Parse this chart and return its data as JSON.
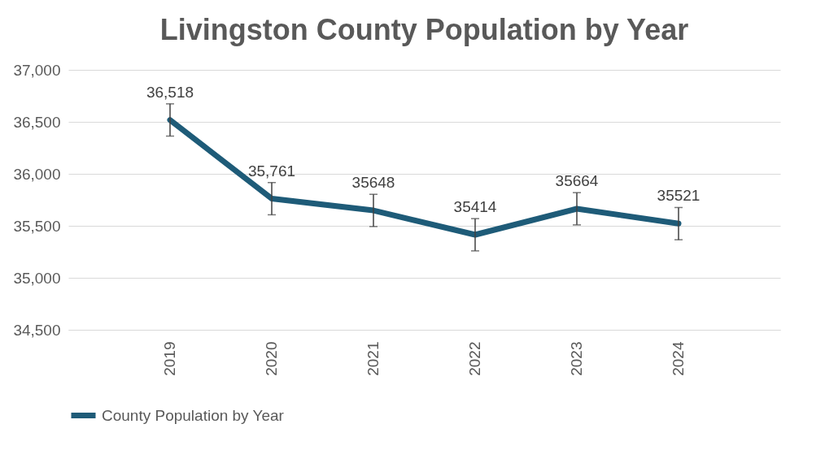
{
  "chart_data": {
    "type": "line",
    "title": "Livingston County Population by Year",
    "categories": [
      "2019",
      "2020",
      "2021",
      "2022",
      "2023",
      "2024"
    ],
    "series": [
      {
        "name": "County Population by Year",
        "color": "#1e5b78",
        "values": [
          36518,
          35761,
          35648,
          35414,
          35664,
          35521
        ],
        "errors": [
          155,
          155,
          155,
          155,
          155,
          155
        ],
        "value_labels": [
          "36,518",
          "35,761",
          "35648",
          "35414",
          "35664",
          "35521"
        ]
      }
    ],
    "ylim": [
      34500,
      37000
    ],
    "yticks": [
      {
        "value": 34500,
        "label": "34,500"
      },
      {
        "value": 35000,
        "label": "35,000"
      },
      {
        "value": 35500,
        "label": "35,500"
      },
      {
        "value": 36000,
        "label": "36,000"
      },
      {
        "value": 36500,
        "label": "36,500"
      },
      {
        "value": 37000,
        "label": "37,000"
      }
    ],
    "grid": "y",
    "legend": "bottom",
    "marker": "none",
    "line_style": "solid"
  }
}
